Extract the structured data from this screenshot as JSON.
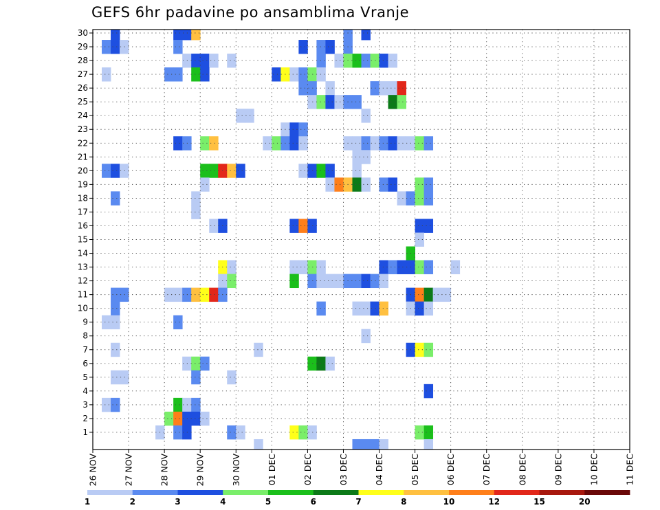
{
  "title": "GEFS 6hr padavine po ansamblima Vranje",
  "chart_data": {
    "type": "heatmap",
    "title": "GEFS 6hr padavine po ansamblima Vranje",
    "x_labels": [
      "26 NOV",
      "27 NOV",
      "28 NOV",
      "29 NOV",
      "30 NOV",
      "01 DEC",
      "02 DEC",
      "03 DEC",
      "04 DEC",
      "05 DEC",
      "06 DEC",
      "07 DEC",
      "08 DEC",
      "09 DEC",
      "10 DEC",
      "11 DEC"
    ],
    "x_steps_per_day": 4,
    "y_labels": [
      1,
      2,
      3,
      4,
      5,
      6,
      7,
      8,
      9,
      10,
      11,
      12,
      13,
      14,
      15,
      16,
      17,
      18,
      19,
      20,
      21,
      22,
      23,
      24,
      25,
      26,
      27,
      28,
      29,
      30
    ],
    "colorbar": {
      "thresholds": [
        "1",
        "2",
        "3",
        "4",
        "5",
        "6",
        "7",
        "8",
        "10",
        "12",
        "15",
        "20"
      ],
      "colors": [
        "#b9cbf4",
        "#5a8af0",
        "#1e4fe0",
        "#7aee6a",
        "#1bbf1b",
        "#0c7a18",
        "#ffff1a",
        "#ffc040",
        "#ff7f1a",
        "#e2271a",
        "#a8180e",
        "#6a0808"
      ]
    },
    "cells": [
      [
        2,
        30,
        3
      ],
      [
        9,
        30,
        3
      ],
      [
        10,
        30,
        3
      ],
      [
        11,
        30,
        8
      ],
      [
        28,
        30,
        2
      ],
      [
        30,
        30,
        3
      ],
      [
        1,
        29,
        2
      ],
      [
        2,
        29,
        3
      ],
      [
        3,
        29,
        1
      ],
      [
        9,
        29,
        2
      ],
      [
        23,
        29,
        3
      ],
      [
        25,
        29,
        2
      ],
      [
        26,
        29,
        3
      ],
      [
        28,
        29,
        2
      ],
      [
        10,
        28,
        1
      ],
      [
        11,
        28,
        3
      ],
      [
        12,
        28,
        3
      ],
      [
        13,
        28,
        1
      ],
      [
        15,
        28,
        1
      ],
      [
        25,
        28,
        2
      ],
      [
        27,
        28,
        1
      ],
      [
        28,
        28,
        4
      ],
      [
        29,
        28,
        5
      ],
      [
        30,
        28,
        2
      ],
      [
        31,
        28,
        4
      ],
      [
        32,
        28,
        3
      ],
      [
        33,
        28,
        1
      ],
      [
        1,
        27,
        1
      ],
      [
        8,
        27,
        2
      ],
      [
        9,
        27,
        2
      ],
      [
        11,
        27,
        5
      ],
      [
        12,
        27,
        3
      ],
      [
        20,
        27,
        3
      ],
      [
        21,
        27,
        7
      ],
      [
        22,
        27,
        1
      ],
      [
        23,
        27,
        2
      ],
      [
        24,
        27,
        4
      ],
      [
        25,
        27,
        1
      ],
      [
        23,
        26,
        2
      ],
      [
        24,
        26,
        2
      ],
      [
        26,
        26,
        1
      ],
      [
        31,
        26,
        2
      ],
      [
        32,
        26,
        1
      ],
      [
        33,
        26,
        1
      ],
      [
        34,
        26,
        10
      ],
      [
        24,
        25,
        1
      ],
      [
        25,
        25,
        4
      ],
      [
        26,
        25,
        3
      ],
      [
        27,
        25,
        1
      ],
      [
        28,
        25,
        2
      ],
      [
        29,
        25,
        2
      ],
      [
        33,
        25,
        6
      ],
      [
        34,
        25,
        4
      ],
      [
        16,
        24,
        1
      ],
      [
        17,
        24,
        1
      ],
      [
        30,
        24,
        1
      ],
      [
        21,
        23,
        1
      ],
      [
        22,
        23,
        3
      ],
      [
        23,
        23,
        2
      ],
      [
        9,
        22,
        3
      ],
      [
        10,
        22,
        2
      ],
      [
        12,
        22,
        4
      ],
      [
        13,
        22,
        8
      ],
      [
        19,
        22,
        1
      ],
      [
        20,
        22,
        4
      ],
      [
        21,
        22,
        2
      ],
      [
        22,
        22,
        3
      ],
      [
        23,
        22,
        1
      ],
      [
        28,
        22,
        1
      ],
      [
        29,
        22,
        1
      ],
      [
        30,
        22,
        2
      ],
      [
        31,
        22,
        1
      ],
      [
        32,
        22,
        2
      ],
      [
        33,
        22,
        3
      ],
      [
        34,
        22,
        1
      ],
      [
        35,
        22,
        1
      ],
      [
        36,
        22,
        4
      ],
      [
        37,
        22,
        2
      ],
      [
        29,
        21,
        1
      ],
      [
        30,
        21,
        1
      ],
      [
        1,
        20,
        2
      ],
      [
        2,
        20,
        3
      ],
      [
        3,
        20,
        1
      ],
      [
        12,
        20,
        5
      ],
      [
        13,
        20,
        5
      ],
      [
        14,
        20,
        10
      ],
      [
        15,
        20,
        8
      ],
      [
        16,
        20,
        3
      ],
      [
        23,
        20,
        1
      ],
      [
        24,
        20,
        3
      ],
      [
        25,
        20,
        5
      ],
      [
        26,
        20,
        3
      ],
      [
        29,
        20,
        1
      ],
      [
        12,
        19,
        1
      ],
      [
        26,
        19,
        1
      ],
      [
        27,
        19,
        9
      ],
      [
        28,
        19,
        8
      ],
      [
        29,
        19,
        6
      ],
      [
        30,
        19,
        1
      ],
      [
        32,
        19,
        2
      ],
      [
        33,
        19,
        3
      ],
      [
        36,
        19,
        4
      ],
      [
        37,
        19,
        2
      ],
      [
        2,
        18,
        2
      ],
      [
        11,
        18,
        1
      ],
      [
        34,
        18,
        1
      ],
      [
        35,
        18,
        2
      ],
      [
        36,
        18,
        4
      ],
      [
        37,
        18,
        2
      ],
      [
        11,
        17,
        1
      ],
      [
        13,
        16,
        1
      ],
      [
        14,
        16,
        3
      ],
      [
        22,
        16,
        3
      ],
      [
        23,
        16,
        9
      ],
      [
        24,
        16,
        3
      ],
      [
        36,
        16,
        3
      ],
      [
        37,
        16,
        3
      ],
      [
        36,
        15,
        1
      ],
      [
        35,
        14,
        5
      ],
      [
        14,
        13,
        7
      ],
      [
        15,
        13,
        1
      ],
      [
        22,
        13,
        1
      ],
      [
        23,
        13,
        1
      ],
      [
        24,
        13,
        4
      ],
      [
        25,
        13,
        1
      ],
      [
        32,
        13,
        3
      ],
      [
        33,
        13,
        2
      ],
      [
        34,
        13,
        3
      ],
      [
        35,
        13,
        3
      ],
      [
        36,
        13,
        4
      ],
      [
        37,
        13,
        2
      ],
      [
        40,
        13,
        1
      ],
      [
        14,
        12,
        1
      ],
      [
        15,
        12,
        4
      ],
      [
        22,
        12,
        5
      ],
      [
        24,
        12,
        2
      ],
      [
        25,
        12,
        1
      ],
      [
        26,
        12,
        1
      ],
      [
        27,
        12,
        1
      ],
      [
        28,
        12,
        2
      ],
      [
        29,
        12,
        2
      ],
      [
        30,
        12,
        3
      ],
      [
        31,
        12,
        2
      ],
      [
        32,
        12,
        1
      ],
      [
        2,
        11,
        2
      ],
      [
        3,
        11,
        2
      ],
      [
        8,
        11,
        1
      ],
      [
        9,
        11,
        1
      ],
      [
        10,
        11,
        2
      ],
      [
        11,
        11,
        8
      ],
      [
        12,
        11,
        7
      ],
      [
        13,
        11,
        10
      ],
      [
        14,
        11,
        2
      ],
      [
        35,
        11,
        3
      ],
      [
        36,
        11,
        9
      ],
      [
        37,
        11,
        6
      ],
      [
        38,
        11,
        1
      ],
      [
        39,
        11,
        1
      ],
      [
        2,
        10,
        2
      ],
      [
        25,
        10,
        2
      ],
      [
        29,
        10,
        1
      ],
      [
        30,
        10,
        1
      ],
      [
        31,
        10,
        3
      ],
      [
        32,
        10,
        8
      ],
      [
        35,
        10,
        1
      ],
      [
        36,
        10,
        3
      ],
      [
        37,
        10,
        1
      ],
      [
        1,
        9,
        1
      ],
      [
        2,
        9,
        1
      ],
      [
        9,
        9,
        2
      ],
      [
        30,
        8,
        1
      ],
      [
        2,
        7,
        1
      ],
      [
        18,
        7,
        1
      ],
      [
        35,
        7,
        3
      ],
      [
        36,
        7,
        7
      ],
      [
        37,
        7,
        4
      ],
      [
        10,
        6,
        1
      ],
      [
        11,
        6,
        4
      ],
      [
        12,
        6,
        2
      ],
      [
        24,
        6,
        5
      ],
      [
        25,
        6,
        6
      ],
      [
        26,
        6,
        1
      ],
      [
        2,
        5,
        1
      ],
      [
        3,
        5,
        1
      ],
      [
        11,
        5,
        2
      ],
      [
        15,
        5,
        1
      ],
      [
        37,
        4,
        3
      ],
      [
        1,
        3,
        1
      ],
      [
        2,
        3,
        2
      ],
      [
        9,
        3,
        5
      ],
      [
        10,
        3,
        1
      ],
      [
        11,
        3,
        2
      ],
      [
        8,
        2,
        4
      ],
      [
        9,
        2,
        9
      ],
      [
        10,
        2,
        3
      ],
      [
        11,
        2,
        3
      ],
      [
        12,
        2,
        1
      ],
      [
        7,
        1,
        1
      ],
      [
        9,
        1,
        2
      ],
      [
        10,
        1,
        3
      ],
      [
        15,
        1,
        2
      ],
      [
        16,
        1,
        1
      ],
      [
        22,
        1,
        7
      ],
      [
        23,
        1,
        4
      ],
      [
        24,
        1,
        1
      ],
      [
        36,
        1,
        4
      ],
      [
        37,
        1,
        5
      ],
      [
        18,
        0,
        1
      ],
      [
        29,
        0,
        2
      ],
      [
        30,
        0,
        2
      ],
      [
        31,
        0,
        2
      ],
      [
        32,
        0,
        1
      ],
      [
        37,
        0,
        1
      ]
    ]
  }
}
